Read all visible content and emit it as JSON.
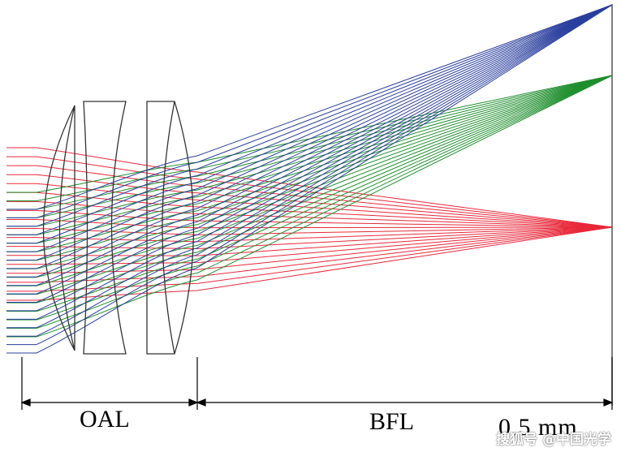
{
  "labels": {
    "oal": "OAL",
    "bfl": "BFL",
    "scale": "0.5   mm"
  },
  "watermark": "搜狐号 @中国光学",
  "colors": {
    "red_field": "#e8283a",
    "green_field": "#1f8f2e",
    "blue_field": "#2a3f9e",
    "lens_outline": "#333333",
    "dimension_line": "#000000"
  }
}
